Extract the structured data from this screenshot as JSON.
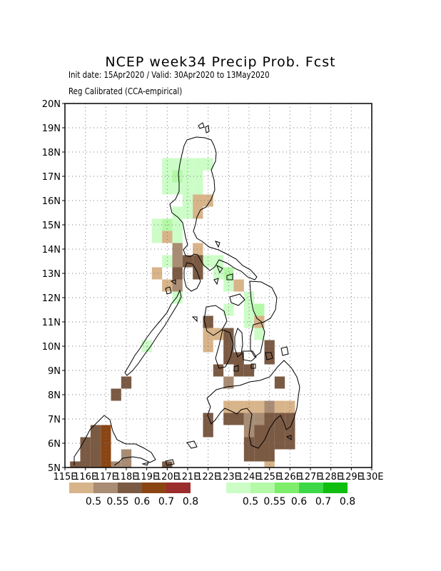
{
  "header": {
    "title": "NCEP week34 Precip Prob. Fcst",
    "line1": "Init date: 15Apr2020 / Valid: 30Apr2020 to 13May2020",
    "line2": "Reg Calibrated (CCA-empirical)"
  },
  "axes": {
    "lat_labels": [
      "20N",
      "19N",
      "18N",
      "17N",
      "16N",
      "15N",
      "14N",
      "13N",
      "12N",
      "11N",
      "10N",
      "9N",
      "8N",
      "7N",
      "6N",
      "5N"
    ],
    "lon_labels": [
      "115E",
      "116E",
      "117E",
      "118E",
      "119E",
      "120E",
      "121E",
      "122E",
      "123E",
      "124E",
      "125E",
      "126E",
      "127E",
      "128E",
      "129E",
      "130E"
    ],
    "lon_range": [
      115,
      130
    ],
    "lat_range": [
      5,
      20
    ],
    "grid": "dotted"
  },
  "legend": {
    "dry": {
      "colors": [
        "#d8b48a",
        "#a88c74",
        "#7b5a44",
        "#8b4513",
        "#9b2d2d"
      ],
      "labels": [
        "0.5",
        "0.55",
        "0.6",
        "0.7",
        "0.8"
      ]
    },
    "wet": {
      "colors": [
        "#ccfdc7",
        "#b3f9a7",
        "#7ded6b",
        "#3cd847",
        "#10be10"
      ],
      "labels": [
        "0.5",
        "0.55",
        "0.6",
        "0.7",
        "0.8"
      ]
    }
  },
  "chart_data": {
    "type": "heatmap",
    "title": "NCEP week34 Precip Prob. Fcst",
    "xlabel": "",
    "ylabel": "",
    "xlim": [
      115,
      130
    ],
    "ylim": [
      5,
      20
    ],
    "cell_size_deg": 0.5,
    "note_categories": "d1-d5 = below-normal probability bins 0.5/0.55/0.6/0.7/0.8; w1-w5 = above-normal bins",
    "cells": [
      {
        "lon": 120.0,
        "lat": 17.5,
        "cat": "w1"
      },
      {
        "lon": 120.5,
        "lat": 17.5,
        "cat": "w1"
      },
      {
        "lon": 121.0,
        "lat": 17.5,
        "cat": "w1"
      },
      {
        "lon": 121.5,
        "lat": 17.5,
        "cat": "w1"
      },
      {
        "lon": 122.0,
        "lat": 17.5,
        "cat": "w1"
      },
      {
        "lon": 120.0,
        "lat": 17.0,
        "cat": "w1"
      },
      {
        "lon": 120.5,
        "lat": 17.0,
        "cat": "w2"
      },
      {
        "lon": 121.0,
        "lat": 17.0,
        "cat": "w1"
      },
      {
        "lon": 121.5,
        "lat": 17.0,
        "cat": "w1"
      },
      {
        "lon": 120.0,
        "lat": 16.5,
        "cat": "w1"
      },
      {
        "lon": 120.5,
        "lat": 16.5,
        "cat": "w1"
      },
      {
        "lon": 121.0,
        "lat": 16.5,
        "cat": "w1"
      },
      {
        "lon": 121.5,
        "lat": 16.5,
        "cat": "w1"
      },
      {
        "lon": 121.0,
        "lat": 16.0,
        "cat": "w1"
      },
      {
        "lon": 121.5,
        "lat": 16.0,
        "cat": "d1"
      },
      {
        "lon": 122.0,
        "lat": 16.0,
        "cat": "d1"
      },
      {
        "lon": 120.5,
        "lat": 15.5,
        "cat": "w1"
      },
      {
        "lon": 121.0,
        "lat": 15.5,
        "cat": "w1"
      },
      {
        "lon": 121.5,
        "lat": 15.5,
        "cat": "d1"
      },
      {
        "lon": 119.5,
        "lat": 15.0,
        "cat": "w1"
      },
      {
        "lon": 120.0,
        "lat": 15.0,
        "cat": "w2"
      },
      {
        "lon": 120.5,
        "lat": 15.0,
        "cat": "w1"
      },
      {
        "lon": 119.5,
        "lat": 14.5,
        "cat": "w1"
      },
      {
        "lon": 120.0,
        "lat": 14.5,
        "cat": "d1"
      },
      {
        "lon": 120.5,
        "lat": 14.5,
        "cat": "w1"
      },
      {
        "lon": 120.5,
        "lat": 14.0,
        "cat": "d2"
      },
      {
        "lon": 121.5,
        "lat": 14.0,
        "cat": "d1"
      },
      {
        "lon": 120.0,
        "lat": 13.5,
        "cat": "w1"
      },
      {
        "lon": 120.5,
        "lat": 13.5,
        "cat": "d2"
      },
      {
        "lon": 121.0,
        "lat": 13.5,
        "cat": "d3"
      },
      {
        "lon": 121.5,
        "lat": 13.5,
        "cat": "d3"
      },
      {
        "lon": 122.0,
        "lat": 13.5,
        "cat": "w1"
      },
      {
        "lon": 122.5,
        "lat": 13.5,
        "cat": "w1"
      },
      {
        "lon": 119.5,
        "lat": 13.0,
        "cat": "d1"
      },
      {
        "lon": 120.5,
        "lat": 13.0,
        "cat": "d3"
      },
      {
        "lon": 121.5,
        "lat": 13.0,
        "cat": "d3"
      },
      {
        "lon": 122.5,
        "lat": 13.0,
        "cat": "w1"
      },
      {
        "lon": 123.0,
        "lat": 13.0,
        "cat": "w2"
      },
      {
        "lon": 120.0,
        "lat": 12.5,
        "cat": "d1"
      },
      {
        "lon": 120.5,
        "lat": 12.5,
        "cat": "d2"
      },
      {
        "lon": 123.0,
        "lat": 12.5,
        "cat": "w1"
      },
      {
        "lon": 123.5,
        "lat": 12.5,
        "cat": "d1"
      },
      {
        "lon": 120.5,
        "lat": 12.0,
        "cat": "w1"
      },
      {
        "lon": 124.0,
        "lat": 12.0,
        "cat": "w1"
      },
      {
        "lon": 123.0,
        "lat": 11.5,
        "cat": "w1"
      },
      {
        "lon": 124.0,
        "lat": 11.5,
        "cat": "w1"
      },
      {
        "lon": 124.5,
        "lat": 11.5,
        "cat": "w2"
      },
      {
        "lon": 122.0,
        "lat": 11.0,
        "cat": "d3"
      },
      {
        "lon": 124.0,
        "lat": 11.0,
        "cat": "w1"
      },
      {
        "lon": 124.5,
        "lat": 11.0,
        "cat": "d1"
      },
      {
        "lon": 122.0,
        "lat": 10.5,
        "cat": "d1"
      },
      {
        "lon": 122.5,
        "lat": 10.5,
        "cat": "d1"
      },
      {
        "lon": 123.0,
        "lat": 10.5,
        "cat": "d3"
      },
      {
        "lon": 124.5,
        "lat": 10.5,
        "cat": "w1"
      },
      {
        "lon": 122.0,
        "lat": 10.0,
        "cat": "d1"
      },
      {
        "lon": 123.0,
        "lat": 10.0,
        "cat": "d3"
      },
      {
        "lon": 125.0,
        "lat": 10.0,
        "cat": "d3"
      },
      {
        "lon": 123.0,
        "lat": 9.5,
        "cat": "d3"
      },
      {
        "lon": 123.5,
        "lat": 9.5,
        "cat": "d3"
      },
      {
        "lon": 125.0,
        "lat": 9.5,
        "cat": "d3"
      },
      {
        "lon": 122.5,
        "lat": 9.0,
        "cat": "d3"
      },
      {
        "lon": 123.5,
        "lat": 9.0,
        "cat": "d3"
      },
      {
        "lon": 124.0,
        "lat": 9.0,
        "cat": "d3"
      },
      {
        "lon": 123.0,
        "lat": 8.5,
        "cat": "d2"
      },
      {
        "lon": 125.5,
        "lat": 8.5,
        "cat": "d3"
      },
      {
        "lon": 123.0,
        "lat": 7.5,
        "cat": "d1"
      },
      {
        "lon": 123.5,
        "lat": 7.5,
        "cat": "d1"
      },
      {
        "lon": 124.0,
        "lat": 7.5,
        "cat": "d1"
      },
      {
        "lon": 124.5,
        "lat": 7.5,
        "cat": "d1"
      },
      {
        "lon": 125.0,
        "lat": 7.5,
        "cat": "d2"
      },
      {
        "lon": 125.5,
        "lat": 7.5,
        "cat": "d1"
      },
      {
        "lon": 126.0,
        "lat": 7.5,
        "cat": "d1"
      },
      {
        "lon": 118.0,
        "lat": 8.5,
        "cat": "d3"
      },
      {
        "lon": 117.5,
        "lat": 8.0,
        "cat": "d3"
      },
      {
        "lon": 122.0,
        "lat": 7.0,
        "cat": "d3"
      },
      {
        "lon": 123.0,
        "lat": 7.0,
        "cat": "d3"
      },
      {
        "lon": 123.5,
        "lat": 7.0,
        "cat": "d3"
      },
      {
        "lon": 124.0,
        "lat": 7.0,
        "cat": "d2"
      },
      {
        "lon": 124.5,
        "lat": 7.0,
        "cat": "d2"
      },
      {
        "lon": 125.0,
        "lat": 7.0,
        "cat": "d3"
      },
      {
        "lon": 125.5,
        "lat": 7.0,
        "cat": "d3"
      },
      {
        "lon": 126.0,
        "lat": 7.0,
        "cat": "d3"
      },
      {
        "lon": 122.0,
        "lat": 6.5,
        "cat": "d3"
      },
      {
        "lon": 124.0,
        "lat": 6.5,
        "cat": "d2"
      },
      {
        "lon": 124.5,
        "lat": 6.5,
        "cat": "d3"
      },
      {
        "lon": 125.0,
        "lat": 6.5,
        "cat": "d3"
      },
      {
        "lon": 125.5,
        "lat": 6.5,
        "cat": "d3"
      },
      {
        "lon": 126.0,
        "lat": 6.5,
        "cat": "d3"
      },
      {
        "lon": 124.0,
        "lat": 6.0,
        "cat": "d3"
      },
      {
        "lon": 124.5,
        "lat": 6.0,
        "cat": "d3"
      },
      {
        "lon": 125.0,
        "lat": 6.0,
        "cat": "d3"
      },
      {
        "lon": 125.5,
        "lat": 6.0,
        "cat": "d3"
      },
      {
        "lon": 126.0,
        "lat": 6.0,
        "cat": "d3"
      },
      {
        "lon": 124.0,
        "lat": 5.5,
        "cat": "d3"
      },
      {
        "lon": 124.5,
        "lat": 5.5,
        "cat": "d3"
      },
      {
        "lon": 125.0,
        "lat": 5.5,
        "cat": "d3"
      },
      {
        "lon": 125.0,
        "lat": 5.0,
        "cat": "d1"
      },
      {
        "lon": 117.0,
        "lat": 6.5,
        "cat": "d4"
      },
      {
        "lon": 117.0,
        "lat": 6.0,
        "cat": "d4"
      },
      {
        "lon": 117.0,
        "lat": 5.5,
        "cat": "d4"
      },
      {
        "lon": 117.0,
        "lat": 5.0,
        "cat": "d4"
      },
      {
        "lon": 116.5,
        "lat": 6.5,
        "cat": "d3"
      },
      {
        "lon": 116.0,
        "lat": 6.0,
        "cat": "d3"
      },
      {
        "lon": 116.5,
        "lat": 6.0,
        "cat": "d3"
      },
      {
        "lon": 116.0,
        "lat": 5.5,
        "cat": "d3"
      },
      {
        "lon": 116.5,
        "lat": 5.5,
        "cat": "d3"
      },
      {
        "lon": 115.5,
        "lat": 5.0,
        "cat": "d3"
      },
      {
        "lon": 116.0,
        "lat": 5.0,
        "cat": "d3"
      },
      {
        "lon": 116.5,
        "lat": 5.0,
        "cat": "d3"
      },
      {
        "lon": 117.5,
        "lat": 5.0,
        "cat": "d2"
      },
      {
        "lon": 118.0,
        "lat": 5.5,
        "cat": "d2"
      },
      {
        "lon": 118.0,
        "lat": 5.0,
        "cat": "d2"
      },
      {
        "lon": 120.0,
        "lat": 5.0,
        "cat": "d3"
      },
      {
        "lon": 119.0,
        "lat": 10.0,
        "cat": "w1"
      }
    ]
  }
}
